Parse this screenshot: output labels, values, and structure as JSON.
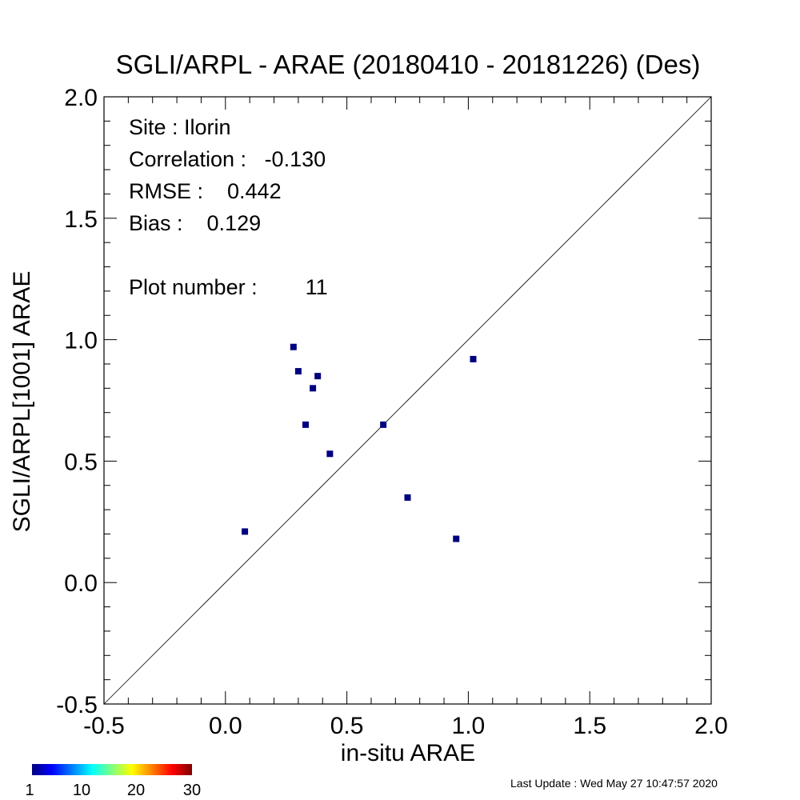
{
  "chart_data": {
    "type": "scatter",
    "title": "SGLI/ARPL - ARAE (20180410 - 20181226) (Des)",
    "xlabel": "in-situ ARAE",
    "ylabel": "SGLI/ARPL[1001]    ARAE",
    "xlim": [
      -0.5,
      2.0
    ],
    "ylim": [
      -0.5,
      2.0
    ],
    "xticks": [
      "-0.5",
      "0.0",
      "0.5",
      "1.0",
      "1.5",
      "2.0"
    ],
    "yticks": [
      "-0.5",
      "0.0",
      "0.5",
      "1.0",
      "1.5",
      "2.0"
    ],
    "grid": false,
    "reference_line": "1:1",
    "points": [
      {
        "x": 0.08,
        "y": 0.21
      },
      {
        "x": 0.28,
        "y": 0.97
      },
      {
        "x": 0.3,
        "y": 0.87
      },
      {
        "x": 0.33,
        "y": 0.65
      },
      {
        "x": 0.36,
        "y": 0.8
      },
      {
        "x": 0.38,
        "y": 0.85
      },
      {
        "x": 0.43,
        "y": 0.53
      },
      {
        "x": 0.65,
        "y": 0.65
      },
      {
        "x": 0.75,
        "y": 0.35
      },
      {
        "x": 0.95,
        "y": 0.18
      },
      {
        "x": 1.02,
        "y": 0.92
      }
    ],
    "point_color": "#00007f",
    "stats": {
      "site": "Site : Ilorin",
      "correlation": "Correlation :   -0.130",
      "rmse": "RMSE :    0.442",
      "bias": "Bias :    0.129",
      "plot_number": "Plot number :        11"
    },
    "colorbar": {
      "labels": [
        "1",
        "10",
        "20",
        "30"
      ],
      "colors": [
        "#00007f",
        "#0000ff",
        "#007fff",
        "#00ffff",
        "#7fff7f",
        "#ffff00",
        "#ff7f00",
        "#ff0000",
        "#7f0000"
      ]
    }
  },
  "footer": "Last Update : Wed May 27 10:47:57 2020"
}
